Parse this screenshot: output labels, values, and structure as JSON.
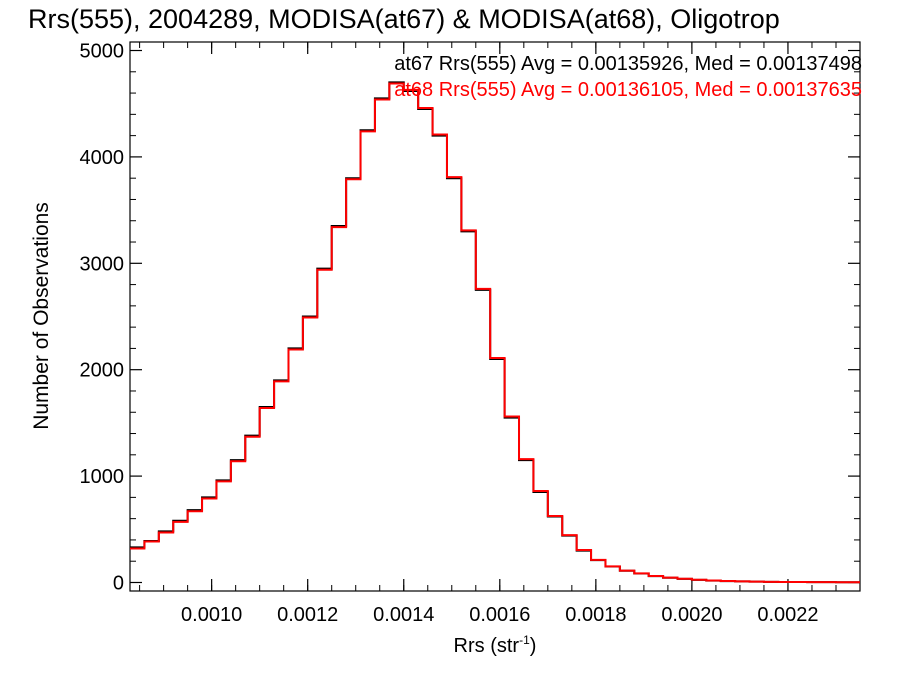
{
  "chart_data": {
    "type": "line",
    "title": "Rrs(555), 2004289, MODISA(at67) & MODISA(at68), Oligotrop",
    "xlabel": "Rrs (str",
    "xlabel_sup": "-1",
    "xlabel_close": ")",
    "ylabel": "Number of Observations",
    "xlim": [
      0.00083,
      0.00235
    ],
    "ylim": [
      -80,
      5080
    ],
    "x_ticks": [
      0.001,
      0.0012,
      0.0014,
      0.0016,
      0.0018,
      0.002,
      0.0022
    ],
    "x_tick_labels": [
      "0.0010",
      "0.0012",
      "0.0014",
      "0.0016",
      "0.0018",
      "0.0020",
      "0.0022"
    ],
    "y_ticks": [
      0,
      1000,
      2000,
      3000,
      4000,
      5000
    ],
    "y_tick_labels": [
      "0",
      "1000",
      "2000",
      "3000",
      "4000",
      "5000"
    ],
    "grid": false,
    "step": true,
    "annotations": [
      {
        "text": "at67 Rrs(555) Avg = 0.00135926, Med = 0.00137498",
        "color": "#000000"
      },
      {
        "text": "at68 Rrs(555) Avg = 0.00136105, Med = 0.00137635",
        "color": "#ff0000"
      }
    ],
    "x": [
      0.00083,
      0.00086,
      0.00089,
      0.00092,
      0.00095,
      0.00098,
      0.00101,
      0.00104,
      0.00107,
      0.0011,
      0.00113,
      0.00116,
      0.00119,
      0.00122,
      0.00125,
      0.00128,
      0.00131,
      0.00134,
      0.00137,
      0.0014,
      0.00143,
      0.00146,
      0.00149,
      0.00152,
      0.00155,
      0.00158,
      0.00161,
      0.00164,
      0.00167,
      0.0017,
      0.00173,
      0.00176,
      0.00179,
      0.00182,
      0.00185,
      0.00188,
      0.00191,
      0.00194,
      0.00197,
      0.002,
      0.00203,
      0.00206,
      0.00209,
      0.00212,
      0.00215,
      0.00218,
      0.00221,
      0.00224,
      0.00227,
      0.0023,
      0.00233,
      0.00235
    ],
    "series": [
      {
        "name": "at67",
        "color": "#000000",
        "values": [
          330,
          390,
          480,
          580,
          680,
          800,
          960,
          1150,
          1380,
          1650,
          1900,
          2200,
          2500,
          2950,
          3350,
          3800,
          4250,
          4550,
          4700,
          4620,
          4450,
          4200,
          3800,
          3300,
          2750,
          2100,
          1550,
          1150,
          850,
          620,
          440,
          300,
          210,
          150,
          110,
          85,
          60,
          45,
          34,
          25,
          18,
          13,
          10,
          8,
          6,
          5,
          4,
          3,
          3,
          2,
          2,
          2
        ]
      },
      {
        "name": "at68",
        "color": "#ff0000",
        "values": [
          320,
          385,
          470,
          570,
          670,
          790,
          950,
          1140,
          1370,
          1640,
          1890,
          2190,
          2490,
          2940,
          3340,
          3790,
          4240,
          4540,
          4690,
          4630,
          4460,
          4210,
          3810,
          3310,
          2760,
          2110,
          1560,
          1160,
          860,
          625,
          445,
          305,
          212,
          152,
          112,
          86,
          61,
          46,
          35,
          26,
          19,
          14,
          11,
          8,
          6,
          5,
          4,
          3,
          3,
          2,
          2,
          2
        ]
      }
    ]
  }
}
